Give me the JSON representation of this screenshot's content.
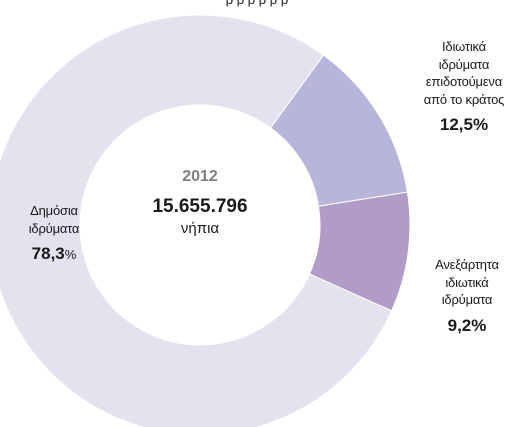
{
  "chart_data": {
    "type": "pie",
    "title": "",
    "center_year": "2012",
    "center_total": "15.655.796",
    "center_unit": "νήπια",
    "slices": [
      {
        "label_lines": [
          "Ιδιωτικά",
          "ιδρύματα",
          "επιδοτούμενα",
          "από το κράτος"
        ],
        "value": 12.5,
        "value_label": "12,5%",
        "color": "#b7b5da"
      },
      {
        "label_lines": [
          "Ανεξάρτητα",
          "ιδιωτικά",
          "ιδρύματα"
        ],
        "value": 9.2,
        "value_label": "9,2%",
        "color": "#b09cc6"
      },
      {
        "label_lines": [
          "Δημόσια",
          "ιδρύματα"
        ],
        "value": 78.3,
        "value_label": "78,3",
        "value_suffix": "%",
        "color": "#e6e1ef"
      }
    ]
  }
}
